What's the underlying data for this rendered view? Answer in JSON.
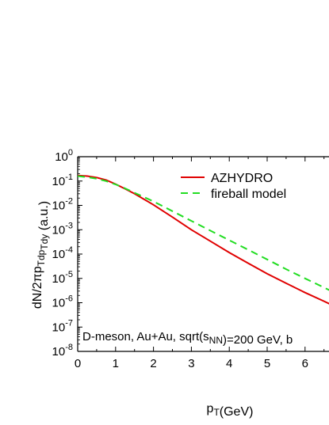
{
  "chart_data": {
    "type": "line",
    "xlabel": "p_T(GeV)",
    "ylabel": "dN/2πp_Tdp_Tdy (a.u.)",
    "xlim": [
      0,
      7
    ],
    "ylim": [
      1e-08,
      1
    ],
    "yscale": "log",
    "x_ticks": [
      0,
      1,
      2,
      3,
      4,
      5,
      6
    ],
    "y_ticks": [
      "10^0",
      "10^-1",
      "10^-2",
      "10^-3",
      "10^-4",
      "10^-5",
      "10^-6",
      "10^-7",
      "10^-8"
    ],
    "legend_position": "top-right",
    "annotation": "D-meson, Au+Au, sqrt(s_NN)=200 GeV, b",
    "series": [
      {
        "name": "AZHYDRO",
        "color": "#e00000",
        "style": "solid",
        "x": [
          0,
          0.25,
          0.5,
          0.75,
          1.0,
          1.25,
          1.5,
          1.75,
          2.0,
          2.5,
          3.0,
          3.5,
          4.0,
          4.5,
          5.0,
          5.5,
          6.0,
          6.5,
          6.9
        ],
        "y": [
          0.17,
          0.16,
          0.14,
          0.11,
          0.075,
          0.048,
          0.03,
          0.018,
          0.0105,
          0.0033,
          0.001,
          0.00034,
          0.000115,
          4.2e-05,
          1.55e-05,
          6.3e-06,
          2.6e-06,
          1.15e-06,
          5.8e-07
        ]
      },
      {
        "name": "fireball model",
        "color": "#22dd22",
        "style": "dashed",
        "x": [
          0,
          0.25,
          0.5,
          0.75,
          1.0,
          1.25,
          1.5,
          1.75,
          2.0,
          2.5,
          3.0,
          3.5,
          4.0,
          4.5,
          5.0,
          5.5,
          6.0,
          6.5,
          6.9
        ],
        "y": [
          0.16,
          0.145,
          0.125,
          0.1,
          0.073,
          0.05,
          0.033,
          0.022,
          0.0145,
          0.0058,
          0.0023,
          0.00092,
          0.00037,
          0.00015,
          6e-05,
          2.4e-05,
          1e-05,
          4.2e-06,
          2.1e-06
        ]
      }
    ]
  }
}
